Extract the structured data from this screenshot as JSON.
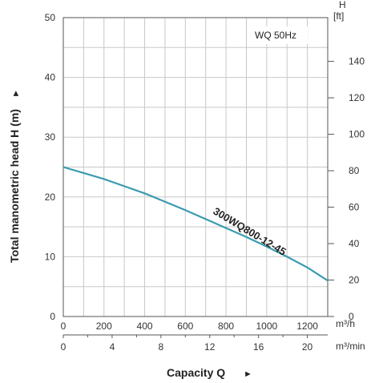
{
  "chart_data": {
    "type": "line",
    "legend_text": "WQ  50Hz",
    "x_axis": {
      "label": "Capacity Q",
      "label_symbol": "►",
      "unit": "m³/h",
      "ticks": [
        0,
        200,
        400,
        600,
        800,
        1000,
        1200
      ],
      "range": [
        0,
        1300
      ]
    },
    "x2_axis": {
      "unit": "m³/min",
      "ticks": [
        0,
        4,
        8,
        12,
        16,
        20
      ],
      "range": [
        0,
        21.67
      ]
    },
    "y_axis": {
      "label": "Total manometric head H (m)",
      "label_symbol": "►",
      "ticks": [
        0,
        10,
        20,
        30,
        40,
        50
      ],
      "range": [
        0,
        50
      ]
    },
    "y2_axis": {
      "unit_letter": "H",
      "unit": "[ft]",
      "ticks": [
        0,
        20,
        40,
        60,
        80,
        100,
        120,
        140
      ],
      "range": [
        0,
        164
      ]
    },
    "grid": true,
    "series": [
      {
        "name": "300WQ800-12-45",
        "color": "#3a9bb0",
        "x": [
          0,
          100,
          200,
          300,
          400,
          500,
          600,
          700,
          800,
          900,
          1000,
          1100,
          1200,
          1300
        ],
        "y": [
          25,
          24,
          23,
          21.8,
          20.6,
          19.2,
          17.8,
          16.3,
          14.8,
          13.3,
          11.7,
          10.0,
          8.2,
          6.0
        ]
      }
    ]
  }
}
